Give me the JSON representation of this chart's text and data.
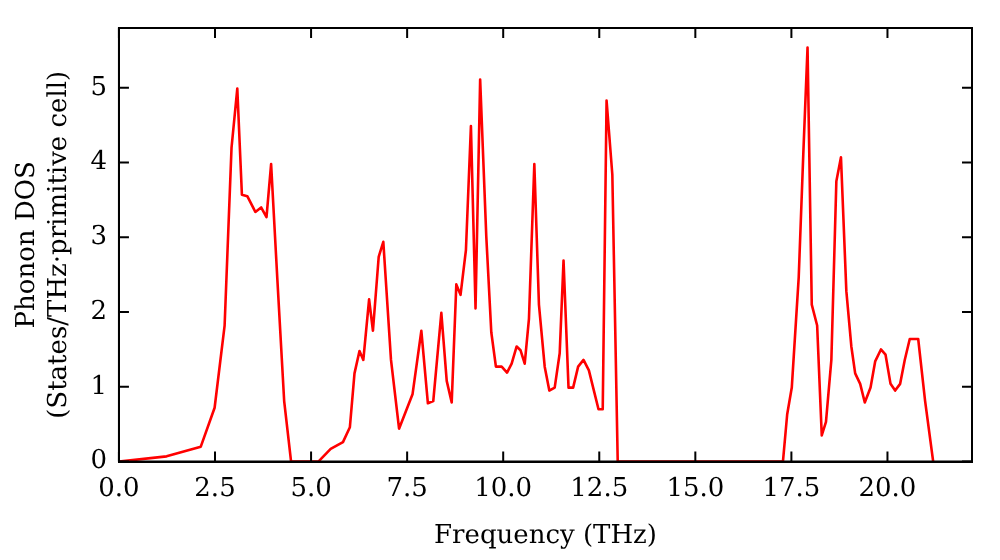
{
  "chart_data": {
    "type": "line",
    "xlabel": "Frequency (THz)",
    "ylabel": "Phonon DOS\n(States/THz·primitive cell)",
    "xlim": [
      0,
      22.2
    ],
    "ylim": [
      0,
      5.8
    ],
    "xticks": [
      {
        "value": 0,
        "label": "0.0"
      },
      {
        "value": 2.5,
        "label": "2.5"
      },
      {
        "value": 5,
        "label": "5.0"
      },
      {
        "value": 7.5,
        "label": "7.5"
      },
      {
        "value": 10,
        "label": "10.0"
      },
      {
        "value": 12.5,
        "label": "12.5"
      },
      {
        "value": 15,
        "label": "15.0"
      },
      {
        "value": 17.5,
        "label": "17.5"
      },
      {
        "value": 20,
        "label": "20.0"
      }
    ],
    "yticks": [
      0,
      1,
      2,
      3,
      4,
      5
    ],
    "grid": false,
    "legend": false,
    "marker": "none",
    "line_style": "solid",
    "series": [
      {
        "color": "#ff0000",
        "x": [
          0,
          1.24,
          2.13,
          2.49,
          2.75,
          2.93,
          3.08,
          3.2,
          3.34,
          3.55,
          3.7,
          3.84,
          3.96,
          4.12,
          4.3,
          4.48,
          5.19,
          5.51,
          5.83,
          6.01,
          6.13,
          6.26,
          6.36,
          6.51,
          6.61,
          6.76,
          6.88,
          7.08,
          7.29,
          7.64,
          7.87,
          8.04,
          8.18,
          8.39,
          8.53,
          8.66,
          8.78,
          8.89,
          9.03,
          9.16,
          9.28,
          9.4,
          9.56,
          9.69,
          9.81,
          9.96,
          10.1,
          10.22,
          10.35,
          10.45,
          10.56,
          10.67,
          10.81,
          10.93,
          11.08,
          11.2,
          11.34,
          11.47,
          11.57,
          11.7,
          11.82,
          11.95,
          12.09,
          12.23,
          12.36,
          12.48,
          12.59,
          12.69,
          12.84,
          12.98,
          17.28,
          17.39,
          17.51,
          17.69,
          17.81,
          17.92,
          18.03,
          18.17,
          18.29,
          18.4,
          18.54,
          18.67,
          18.79,
          18.93,
          19.06,
          19.16,
          19.29,
          19.41,
          19.56,
          19.68,
          19.83,
          19.95,
          20.08,
          20.2,
          20.33,
          20.45,
          20.58,
          20.8,
          20.98,
          21.19
        ],
        "values": [
          0,
          0.07,
          0.2,
          0.72,
          1.82,
          4.2,
          4.99,
          3.57,
          3.55,
          3.34,
          3.4,
          3.27,
          3.98,
          2.46,
          0.81,
          0,
          0,
          0.17,
          0.26,
          0.46,
          1.18,
          1.48,
          1.36,
          2.17,
          1.75,
          2.74,
          2.94,
          1.36,
          0.44,
          0.9,
          1.75,
          0.78,
          0.81,
          1.99,
          1.08,
          0.79,
          2.37,
          2.23,
          2.83,
          4.49,
          2.05,
          5.11,
          3.01,
          1.73,
          1.27,
          1.27,
          1.19,
          1.31,
          1.54,
          1.49,
          1.31,
          1.91,
          3.98,
          2.1,
          1.27,
          0.95,
          0.99,
          1.45,
          2.69,
          0.99,
          0.99,
          1.27,
          1.36,
          1.22,
          0.95,
          0.7,
          0.7,
          4.83,
          3.84,
          0,
          0,
          0.63,
          0.99,
          2.46,
          4.12,
          5.54,
          2.1,
          1.82,
          0.35,
          0.53,
          1.36,
          3.75,
          4.07,
          2.28,
          1.54,
          1.18,
          1.04,
          0.79,
          0.99,
          1.34,
          1.5,
          1.43,
          1.04,
          0.95,
          1.04,
          1.36,
          1.64,
          1.64,
          0.81,
          0
        ]
      }
    ]
  }
}
